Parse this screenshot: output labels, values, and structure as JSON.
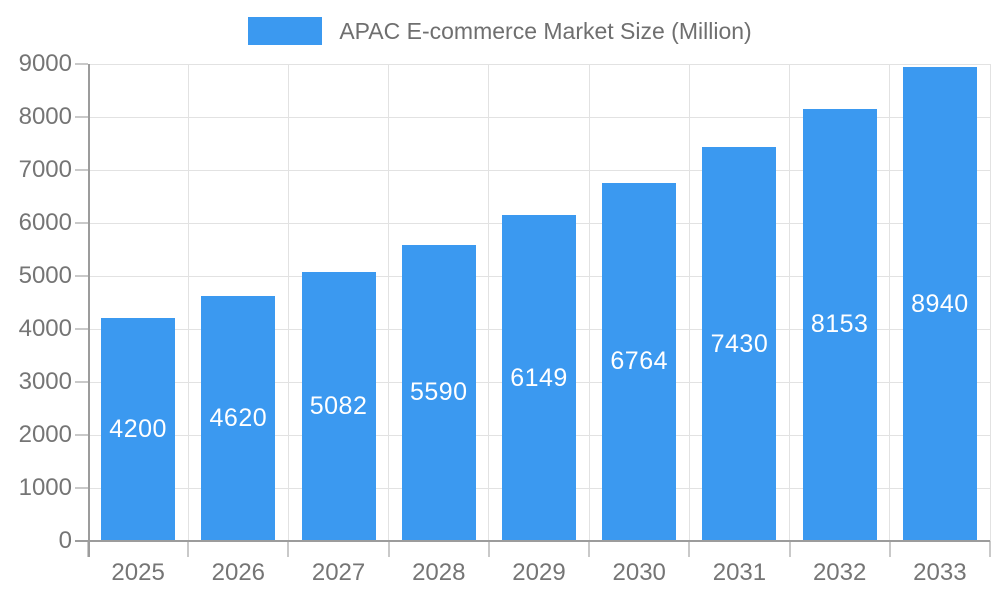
{
  "legend": {
    "label": "APAC E-commerce Market Size (Million)"
  },
  "chart_data": {
    "type": "bar",
    "title": "APAC E-commerce Market Size (Million)",
    "categories": [
      "2025",
      "2026",
      "2027",
      "2028",
      "2029",
      "2030",
      "2031",
      "2032",
      "2033"
    ],
    "values": [
      4200,
      4620,
      5082,
      5590,
      6149,
      6764,
      7430,
      8153,
      8940
    ],
    "value_labels": [
      "4200",
      "4620",
      "5082",
      "5590",
      "6149",
      "6764",
      "7430",
      "8153",
      "8940"
    ],
    "yticks": [
      0,
      1000,
      2000,
      3000,
      4000,
      5000,
      6000,
      7000,
      8000,
      9000
    ],
    "ylim": [
      0,
      9000
    ],
    "xlabel": "",
    "ylabel": "",
    "grid": true,
    "legend_position": "top-center",
    "value_label_position": "inside-center",
    "colors": {
      "bar": "#3B99F0",
      "value_label": "#FFFFFF",
      "axis_line": "#9C9C9C",
      "grid_line": "#E2E2E2",
      "tick_line": "#C9C9C9",
      "tick_label": "#757575",
      "background": "#FFFFFF"
    }
  }
}
